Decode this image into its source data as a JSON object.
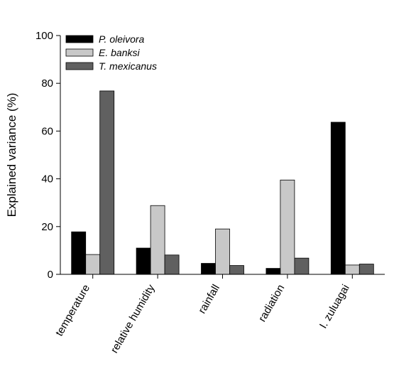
{
  "chart_data": {
    "type": "bar",
    "title": "",
    "xlabel": "",
    "ylabel": "Explained variance (%)",
    "ylim": [
      0,
      100
    ],
    "yticks": [
      0,
      20,
      40,
      60,
      80,
      100
    ],
    "grid": false,
    "legend_position": "top-left",
    "categories": [
      "temperature",
      "relative humidity",
      "rainfall",
      "radiation",
      "I. zuluagai"
    ],
    "series": [
      {
        "name": "P. oleivora",
        "color": "#000000",
        "values": [
          17.8,
          11.0,
          4.6,
          2.5,
          63.7
        ]
      },
      {
        "name": "E. banksi",
        "color": "#c8c8c8",
        "values": [
          8.3,
          28.8,
          19.0,
          39.5,
          3.9
        ]
      },
      {
        "name": "T. mexicanus",
        "color": "#606060",
        "values": [
          76.8,
          8.1,
          3.7,
          6.8,
          4.3
        ]
      }
    ]
  }
}
